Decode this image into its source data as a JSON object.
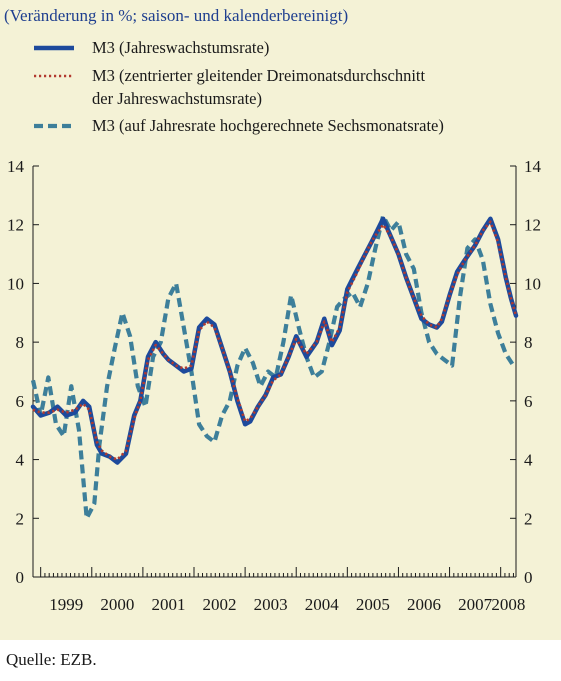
{
  "colors": {
    "background": "#f4f2d6",
    "series_solid": "#1d4a9c",
    "series_dotted": "#b23a2f",
    "series_dashed": "#3d7f9a",
    "subtitle": "#1f3f8f"
  },
  "source": "Quelle: EZB.",
  "chart_data": {
    "type": "line",
    "subtitle": "(Veränderung in %; saison- und kalenderbereinigt)",
    "ylim": [
      0,
      14
    ],
    "yticks": [
      0,
      2,
      4,
      6,
      8,
      10,
      12,
      14
    ],
    "x_range": [
      1998.85,
      2008.3
    ],
    "years": [
      "1999",
      "2000",
      "2001",
      "2002",
      "2003",
      "2004",
      "2005",
      "2006",
      "2007",
      "2008"
    ],
    "grid": false,
    "legend_position": "top-left",
    "series": [
      {
        "name": "M3 (Jahreswachstumsrate)",
        "style": "solid",
        "x": [
          1998.85,
          1999.0,
          1999.17,
          1999.33,
          1999.5,
          1999.67,
          1999.83,
          1999.95,
          2000.1,
          2000.2,
          2000.35,
          2000.5,
          2000.67,
          2000.83,
          2000.95,
          2001.1,
          2001.25,
          2001.4,
          2001.5,
          2001.65,
          2001.8,
          2001.95,
          2002.1,
          2002.25,
          2002.4,
          2002.55,
          2002.7,
          2002.85,
          2003.0,
          2003.1,
          2003.25,
          2003.4,
          2003.55,
          2003.7,
          2003.85,
          2004.0,
          2004.2,
          2004.4,
          2004.55,
          2004.7,
          2004.85,
          2005.0,
          2005.2,
          2005.35,
          2005.5,
          2005.7,
          2005.85,
          2006.0,
          2006.15,
          2006.3,
          2006.45,
          2006.6,
          2006.75,
          2006.85,
          2007.0,
          2007.15,
          2007.3,
          2007.5,
          2007.65,
          2007.8,
          2007.95,
          2008.1,
          2008.2,
          2008.3
        ],
        "values": [
          5.8,
          5.5,
          5.6,
          5.8,
          5.5,
          5.6,
          6.0,
          5.8,
          4.5,
          4.2,
          4.1,
          3.9,
          4.2,
          5.5,
          6.0,
          7.5,
          8.0,
          7.6,
          7.4,
          7.2,
          7.0,
          7.1,
          8.5,
          8.8,
          8.6,
          7.8,
          7.0,
          6.0,
          5.2,
          5.3,
          5.8,
          6.2,
          6.8,
          6.9,
          7.5,
          8.2,
          7.5,
          8.0,
          8.8,
          7.9,
          8.4,
          9.8,
          10.5,
          11.0,
          11.5,
          12.2,
          11.6,
          11.0,
          10.2,
          9.5,
          8.8,
          8.6,
          8.5,
          8.7,
          9.6,
          10.4,
          10.8,
          11.3,
          11.8,
          12.2,
          11.5,
          10.2,
          9.5,
          8.9
        ]
      },
      {
        "name": "M3 (zentrierter gleitender Dreimonatsdurchschnitt der Jahreswachstumsrate)",
        "style": "dotted",
        "x": [
          1998.85,
          1999.0,
          1999.17,
          1999.33,
          1999.5,
          1999.67,
          1999.83,
          1999.95,
          2000.1,
          2000.2,
          2000.35,
          2000.5,
          2000.67,
          2000.83,
          2000.95,
          2001.1,
          2001.25,
          2001.4,
          2001.5,
          2001.65,
          2001.8,
          2001.95,
          2002.1,
          2002.25,
          2002.4,
          2002.55,
          2002.7,
          2002.85,
          2003.0,
          2003.1,
          2003.25,
          2003.4,
          2003.55,
          2003.7,
          2003.85,
          2004.0,
          2004.2,
          2004.4,
          2004.55,
          2004.7,
          2004.85,
          2005.0,
          2005.2,
          2005.35,
          2005.5,
          2005.7,
          2005.85,
          2006.0,
          2006.15,
          2006.3,
          2006.45,
          2006.6,
          2006.75,
          2006.85,
          2007.0,
          2007.15,
          2007.3,
          2007.5,
          2007.65,
          2007.8,
          2007.95,
          2008.1,
          2008.2,
          2008.3
        ],
        "values": [
          5.7,
          5.6,
          5.6,
          5.7,
          5.6,
          5.7,
          5.9,
          5.7,
          4.6,
          4.3,
          4.1,
          4.0,
          4.3,
          5.4,
          6.0,
          7.4,
          7.9,
          7.6,
          7.4,
          7.2,
          7.1,
          7.2,
          8.4,
          8.7,
          8.5,
          7.8,
          7.0,
          6.1,
          5.3,
          5.4,
          5.8,
          6.2,
          6.7,
          6.9,
          7.5,
          8.1,
          7.6,
          8.0,
          8.7,
          8.0,
          8.5,
          9.7,
          10.4,
          11.0,
          11.5,
          12.0,
          11.6,
          11.0,
          10.2,
          9.5,
          8.9,
          8.6,
          8.5,
          8.8,
          9.6,
          10.3,
          10.8,
          11.3,
          11.8,
          12.1,
          11.4,
          10.2,
          9.5,
          8.9
        ]
      },
      {
        "name": "M3 (auf Jahresrate hochgerechnete Sechsmonatsrate)",
        "style": "dashed",
        "x": [
          1998.85,
          1999.0,
          1999.15,
          1999.3,
          1999.45,
          1999.6,
          1999.75,
          1999.9,
          2000.05,
          2000.15,
          2000.3,
          2000.45,
          2000.6,
          2000.75,
          2000.9,
          2001.05,
          2001.2,
          2001.35,
          2001.5,
          2001.65,
          2001.8,
          2001.95,
          2002.1,
          2002.25,
          2002.4,
          2002.55,
          2002.7,
          2002.85,
          2003.0,
          2003.15,
          2003.3,
          2003.45,
          2003.6,
          2003.75,
          2003.9,
          2004.05,
          2004.2,
          2004.35,
          2004.5,
          2004.65,
          2004.8,
          2004.95,
          2005.1,
          2005.25,
          2005.4,
          2005.55,
          2005.7,
          2005.85,
          2006.0,
          2006.15,
          2006.3,
          2006.45,
          2006.6,
          2006.75,
          2006.9,
          2007.05,
          2007.2,
          2007.35,
          2007.5,
          2007.65,
          2007.8,
          2007.95,
          2008.1,
          2008.25
        ],
        "values": [
          6.7,
          5.5,
          6.8,
          5.2,
          4.8,
          6.5,
          5.0,
          2.0,
          2.5,
          4.5,
          6.5,
          7.8,
          9.0,
          8.2,
          6.5,
          5.8,
          7.5,
          8.0,
          9.5,
          10.0,
          8.5,
          7.0,
          5.2,
          4.8,
          4.6,
          5.5,
          6.0,
          7.2,
          7.8,
          7.3,
          6.5,
          7.0,
          6.8,
          8.0,
          9.6,
          8.5,
          7.5,
          6.8,
          7.0,
          8.0,
          9.2,
          9.5,
          9.7,
          9.2,
          10.0,
          11.2,
          12.3,
          11.8,
          12.1,
          11.0,
          10.5,
          9.0,
          8.0,
          7.6,
          7.4,
          7.2,
          9.5,
          11.2,
          11.5,
          10.8,
          9.3,
          8.3,
          7.6,
          7.2
        ]
      }
    ]
  }
}
